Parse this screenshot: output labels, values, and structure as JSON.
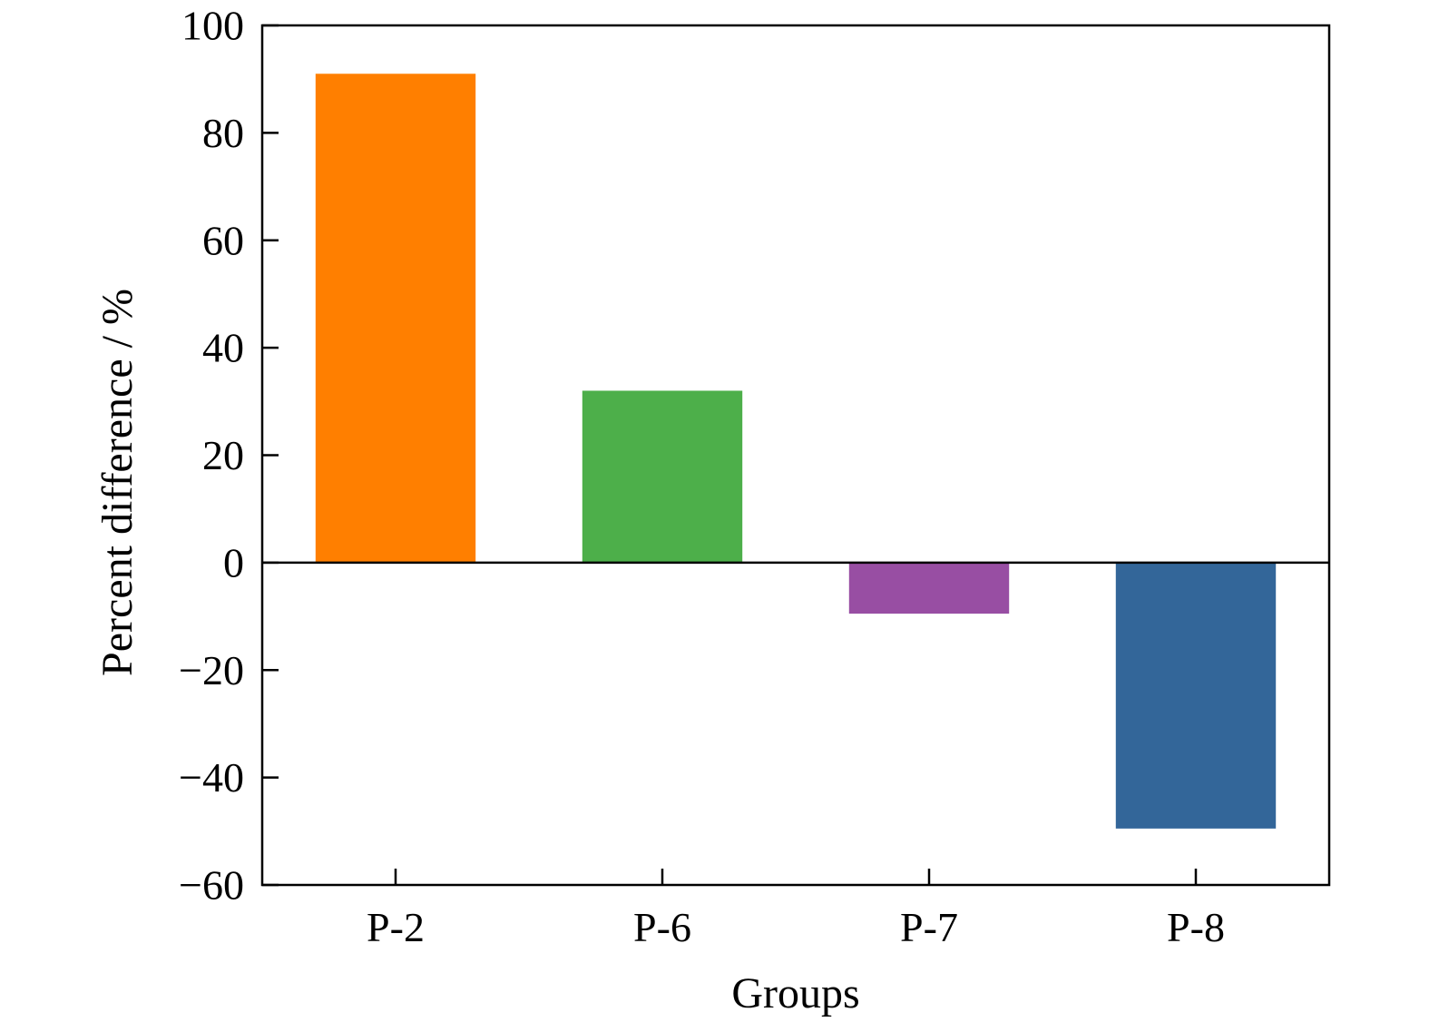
{
  "chart_data": {
    "type": "bar",
    "categories": [
      "P-2",
      "P-6",
      "P-7",
      "P-8"
    ],
    "values": [
      91,
      32,
      -9.5,
      -49.5
    ],
    "colors": [
      "#ff7f00",
      "#4daf4a",
      "#984ea3",
      "#336699"
    ],
    "title": "",
    "xlabel": "Groups",
    "ylabel": "Percent difference / %",
    "ylim": [
      -60,
      100
    ],
    "yticks": [
      -60,
      -40,
      -20,
      0,
      20,
      40,
      60,
      80,
      100
    ],
    "ytick_labels": [
      "−60",
      "−40",
      "−20",
      "0",
      "20",
      "40",
      "60",
      "80",
      "100"
    ],
    "zero_line": true,
    "grid": false,
    "legend": "none"
  }
}
